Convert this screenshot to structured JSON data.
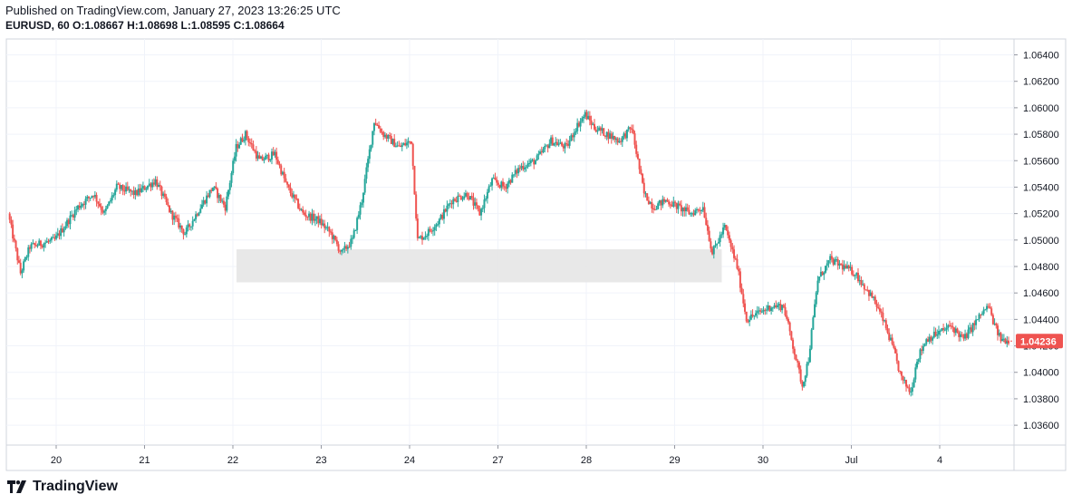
{
  "header": {
    "published": "Published on TradingView.com, January 27, 2023 13:26:25 UTC",
    "symbol": "EURUSD, 60",
    "o_label": "O:",
    "o_value": "1.08667",
    "h_label": "H:",
    "h_value": "1.08698",
    "l_label": "L:",
    "l_value": "1.08595",
    "c_label": "C:",
    "c_value": "1.08664"
  },
  "footer": {
    "logo_text": "TradingView",
    "logo_icon": "tradingview-logo-icon"
  },
  "colors": {
    "up": "#26a69a",
    "down": "#ef5350",
    "grid": "#f0f3fa",
    "zone": "#e6e6e6",
    "price_badge": "#ef5350"
  },
  "chart_data": {
    "type": "candlestick",
    "timeframe": "60",
    "x_tick_labels": [
      "20",
      "21",
      "22",
      "23",
      "24",
      "27",
      "28",
      "29",
      "30",
      "Jul",
      "4"
    ],
    "y_tick_labels": [
      "1.06400",
      "1.06200",
      "1.06000",
      "1.05800",
      "1.05600",
      "1.05400",
      "1.05200",
      "1.05000",
      "1.04800",
      "1.04600",
      "1.04400",
      "1.04200",
      "1.04000",
      "1.03800",
      "1.03600"
    ],
    "ylim": [
      1.0345,
      1.0652
    ],
    "last_price": "1.04236",
    "grid": true,
    "zone": {
      "label": "",
      "y_low": 1.0468,
      "y_high": 1.0493,
      "x_start": "22",
      "x_end": "29"
    },
    "path_points": [
      [
        0,
        1.052
      ],
      [
        8,
        1.0475
      ],
      [
        14,
        1.0495
      ],
      [
        30,
        1.05
      ],
      [
        45,
        1.0525
      ],
      [
        55,
        1.0535
      ],
      [
        62,
        1.052
      ],
      [
        70,
        1.054
      ],
      [
        82,
        1.0535
      ],
      [
        95,
        1.0545
      ],
      [
        105,
        1.052
      ],
      [
        114,
        1.0505
      ],
      [
        124,
        1.0525
      ],
      [
        132,
        1.054
      ],
      [
        140,
        1.0525
      ],
      [
        147,
        1.057
      ],
      [
        153,
        1.058
      ],
      [
        162,
        1.056
      ],
      [
        172,
        1.0565
      ],
      [
        180,
        1.054
      ],
      [
        190,
        1.052
      ],
      [
        200,
        1.0515
      ],
      [
        208,
        1.0505
      ],
      [
        215,
        1.049
      ],
      [
        222,
        1.05
      ],
      [
        228,
        1.053
      ],
      [
        236,
        1.059
      ],
      [
        242,
        1.058
      ],
      [
        252,
        1.057
      ],
      [
        260,
        1.0575
      ],
      [
        264,
        1.05
      ],
      [
        270,
        1.0505
      ],
      [
        278,
        1.0515
      ],
      [
        286,
        1.053
      ],
      [
        296,
        1.0535
      ],
      [
        304,
        1.052
      ],
      [
        312,
        1.0545
      ],
      [
        320,
        1.054
      ],
      [
        330,
        1.0555
      ],
      [
        340,
        1.056
      ],
      [
        350,
        1.0575
      ],
      [
        360,
        1.057
      ],
      [
        366,
        1.0585
      ],
      [
        372,
        1.0595
      ],
      [
        378,
        1.0585
      ],
      [
        386,
        1.058
      ],
      [
        394,
        1.0575
      ],
      [
        402,
        1.0585
      ],
      [
        410,
        1.0535
      ],
      [
        416,
        1.0525
      ],
      [
        424,
        1.053
      ],
      [
        432,
        1.0525
      ],
      [
        440,
        1.052
      ],
      [
        448,
        1.0525
      ],
      [
        454,
        1.049
      ],
      [
        462,
        1.051
      ],
      [
        470,
        1.048
      ],
      [
        476,
        1.044
      ],
      [
        484,
        1.0445
      ],
      [
        492,
        1.045
      ],
      [
        500,
        1.045
      ],
      [
        506,
        1.042
      ],
      [
        512,
        1.039
      ],
      [
        516,
        1.041
      ],
      [
        522,
        1.047
      ],
      [
        530,
        1.0485
      ],
      [
        538,
        1.048
      ],
      [
        546,
        1.0475
      ],
      [
        552,
        1.0465
      ],
      [
        558,
        1.0455
      ],
      [
        564,
        1.044
      ],
      [
        570,
        1.042
      ],
      [
        576,
        1.0395
      ],
      [
        582,
        1.0385
      ],
      [
        586,
        1.041
      ],
      [
        592,
        1.0425
      ],
      [
        600,
        1.043
      ],
      [
        608,
        1.0435
      ],
      [
        616,
        1.0425
      ],
      [
        622,
        1.0435
      ],
      [
        628,
        1.0445
      ],
      [
        632,
        1.045
      ],
      [
        636,
        1.0435
      ],
      [
        640,
        1.0425
      ],
      [
        645,
        1.0424
      ]
    ]
  }
}
